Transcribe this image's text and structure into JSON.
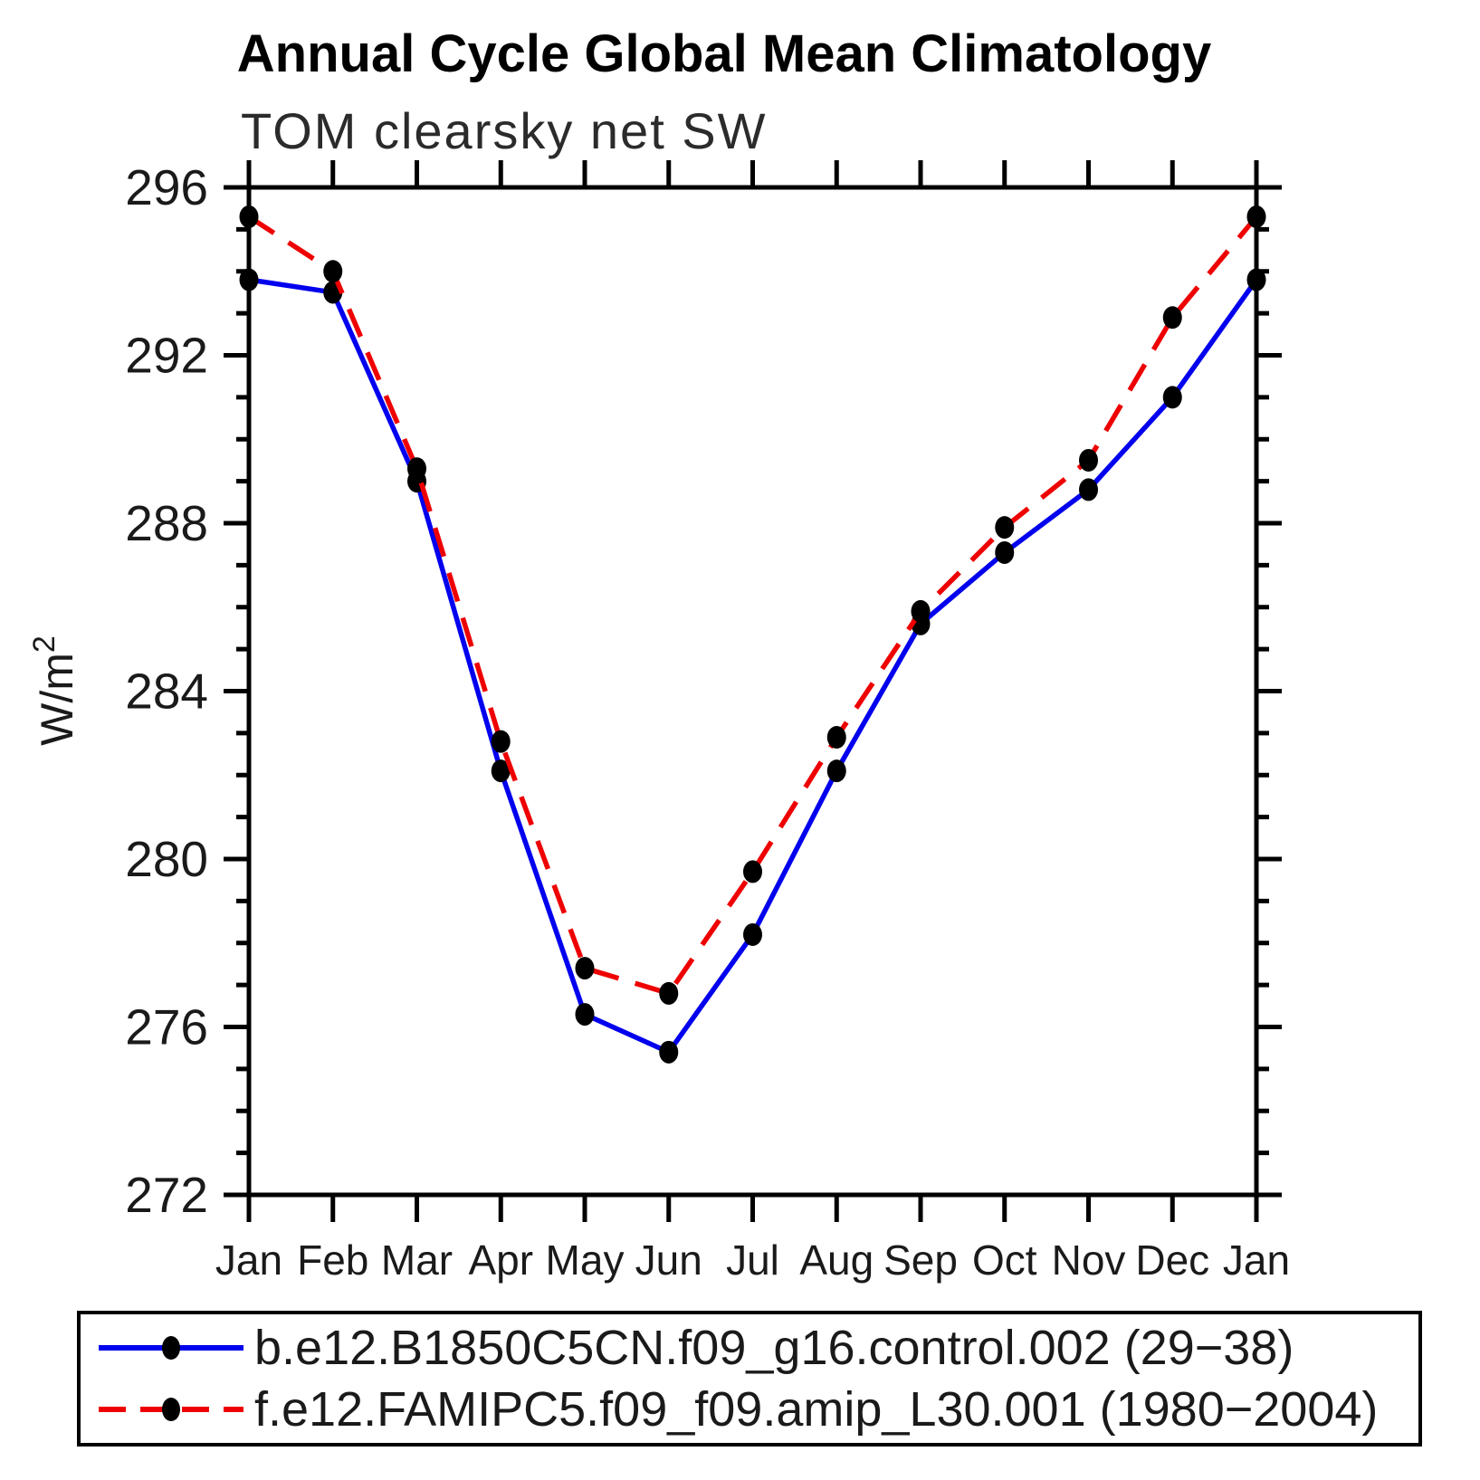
{
  "title": "Annual Cycle Global Mean Climatology",
  "subtitle": "TOM clearsky net SW",
  "ylabel": {
    "base": "W/m",
    "exp": "2",
    "full": "W/m²"
  },
  "chart_data": {
    "type": "line",
    "categories": [
      "Jan",
      "Feb",
      "Mar",
      "Apr",
      "May",
      "Jun",
      "Jul",
      "Aug",
      "Sep",
      "Oct",
      "Nov",
      "Dec",
      "Jan"
    ],
    "xlabel": "",
    "ylabel": "W/m²",
    "ylim": [
      272,
      296
    ],
    "ytick_major": [
      272,
      276,
      280,
      284,
      288,
      292,
      296
    ],
    "ytick_minor_step": 1,
    "grid": false,
    "legend_position": "bottom",
    "series": [
      {
        "name": "b.e12.B1850C5CN.f09_g16.control.002 (29−38)",
        "color": "#0000ee",
        "style": "solid",
        "marker": "filled-circle",
        "marker_color": "#000000",
        "values": [
          293.8,
          293.5,
          289.0,
          282.1,
          276.3,
          275.4,
          278.2,
          282.1,
          285.6,
          287.3,
          288.8,
          291.0,
          293.8
        ]
      },
      {
        "name": "f.e12.FAMIPC5.f09_f09.amip_L30.001 (1980−2004)",
        "color": "#ee0000",
        "style": "dashed",
        "marker": "filled-circle",
        "marker_color": "#000000",
        "values": [
          295.3,
          294.0,
          289.3,
          282.8,
          277.4,
          276.8,
          279.7,
          282.9,
          285.9,
          287.9,
          289.5,
          292.9,
          295.3
        ]
      }
    ]
  }
}
